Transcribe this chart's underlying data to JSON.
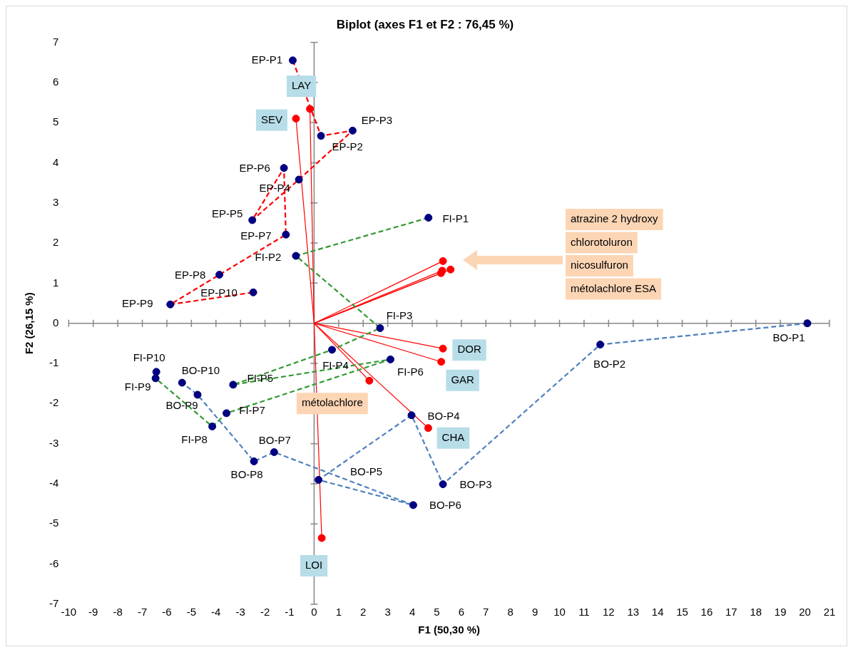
{
  "chart_data": {
    "type": "scatter",
    "title": "Biplot (axes F1 et F2 : 76,45 %)",
    "xlabel": "F1 (50,30 %)",
    "ylabel": "F2 (26,15 %)",
    "xlim": [
      -10,
      21
    ],
    "xticks": [
      -10,
      -9,
      -8,
      -7,
      -6,
      -5,
      -4,
      -3,
      -2,
      -1,
      0,
      1,
      2,
      3,
      4,
      5,
      6,
      7,
      8,
      9,
      10,
      11,
      12,
      13,
      14,
      15,
      16,
      17,
      18,
      19,
      20,
      21
    ],
    "ylim": [
      -7,
      7
    ],
    "yticks": [
      -7,
      -6,
      -5,
      -4,
      -3,
      -2,
      -1,
      0,
      1,
      2,
      3,
      4,
      5,
      6,
      7
    ],
    "legend": false,
    "series": [
      {
        "type": "scatter",
        "color": "#000080",
        "marker": "circle",
        "x": [
          -0.87,
          0.28,
          1.57,
          -0.62,
          -2.52,
          -1.23,
          -1.15,
          -3.86,
          -5.86,
          -2.48,
          4.66,
          -0.74,
          2.69,
          0.73,
          -3.3,
          3.11,
          -3.57,
          -4.15,
          -6.46,
          -6.43,
          20.1,
          11.66,
          5.25,
          3.97,
          0.18,
          4.04,
          -1.63,
          -2.45,
          -4.75,
          -5.38
        ],
        "values": [
          6.55,
          4.67,
          4.8,
          3.58,
          2.57,
          3.87,
          2.21,
          1.21,
          0.47,
          0.77,
          2.63,
          1.68,
          -0.12,
          -0.66,
          -1.53,
          -0.9,
          -2.24,
          -2.57,
          -1.37,
          -1.21,
          0,
          -0.53,
          -4.01,
          -2.29,
          -3.9,
          -4.53,
          -3.21,
          -3.44,
          -1.78,
          -1.48
        ]
      },
      {
        "type": "scatter",
        "color": "#ff0000",
        "marker": "circle",
        "x": [
          -0.17,
          -0.74,
          5.25,
          5.18,
          4.65,
          0.31
        ],
        "values": [
          5.34,
          5.1,
          -0.63,
          -0.96,
          -2.61,
          -5.35
        ]
      },
      {
        "type": "scatter",
        "color": "#ff0000",
        "marker": "circle",
        "x": [
          2.25,
          5.25,
          5.56,
          5.17,
          5.22
        ],
        "values": [
          -1.43,
          1.55,
          1.34,
          1.25,
          1.31
        ]
      },
      {
        "type": "line",
        "color": "#ff0000",
        "line_style": "dashed",
        "x": [
          -0.87,
          0.28,
          1.57,
          -0.62,
          -2.52,
          -1.23,
          -1.15,
          -3.86,
          -5.86,
          -2.48
        ],
        "values": [
          6.55,
          4.67,
          4.8,
          3.58,
          2.57,
          3.87,
          2.21,
          1.21,
          0.47,
          0.77
        ]
      },
      {
        "type": "line",
        "color": "#339933",
        "line_style": "dashed",
        "x": [
          4.66,
          -0.74,
          2.69,
          0.73,
          -3.3,
          3.11,
          -3.57,
          -4.15,
          -6.46,
          -6.43
        ],
        "values": [
          2.63,
          1.68,
          -0.12,
          -0.66,
          -1.53,
          -0.9,
          -2.24,
          -2.57,
          -1.37,
          -1.21
        ]
      },
      {
        "type": "line",
        "color": "#4f81bd",
        "line_style": "dashed",
        "x": [
          20.1,
          11.66,
          5.25,
          3.97,
          0.18,
          4.04,
          -1.63,
          -2.45,
          -4.75,
          -5.38
        ],
        "values": [
          0,
          -0.53,
          -4.01,
          -2.29,
          -3.9,
          -4.53,
          -3.21,
          -3.44,
          -1.78,
          -1.48
        ]
      },
      {
        "type": "line",
        "color": "#ff0000",
        "line_style": "solid",
        "x": [
          0,
          -0.17
        ],
        "values": [
          0,
          5.34
        ]
      },
      {
        "type": "line",
        "color": "#ff0000",
        "line_style": "solid",
        "x": [
          0,
          -0.74
        ],
        "values": [
          0,
          5.1
        ]
      },
      {
        "type": "line",
        "color": "#ff0000",
        "line_style": "solid",
        "x": [
          0,
          5.25
        ],
        "values": [
          0,
          -0.63
        ]
      },
      {
        "type": "line",
        "color": "#ff0000",
        "line_style": "solid",
        "x": [
          0,
          5.18
        ],
        "values": [
          0,
          -0.96
        ]
      },
      {
        "type": "line",
        "color": "#ff0000",
        "line_style": "solid",
        "x": [
          0,
          4.65
        ],
        "values": [
          0,
          -2.61
        ]
      },
      {
        "type": "line",
        "color": "#ff0000",
        "line_style": "solid",
        "x": [
          0,
          0.31
        ],
        "values": [
          0,
          -5.35
        ]
      },
      {
        "type": "line",
        "color": "#ff0000",
        "line_style": "solid",
        "x": [
          0,
          2.25
        ],
        "values": [
          0,
          -1.43
        ]
      },
      {
        "type": "line",
        "color": "#ff0000",
        "line_style": "solid",
        "x": [
          0,
          5.25
        ],
        "values": [
          0,
          1.55
        ]
      },
      {
        "type": "line",
        "color": "#ff0000",
        "line_style": "solid",
        "x": [
          0,
          5.56
        ],
        "values": [
          0,
          1.34
        ]
      },
      {
        "type": "line",
        "color": "#ff0000",
        "line_style": "solid",
        "x": [
          0,
          5.17
        ],
        "values": [
          0,
          1.25
        ]
      },
      {
        "type": "line",
        "color": "#ff0000",
        "line_style": "solid",
        "x": [
          0,
          5.22
        ],
        "values": [
          0,
          1.31
        ]
      }
    ],
    "annotations": [
      {
        "text": "EP-P1",
        "x": -0.87,
        "y": 6.55
      },
      {
        "text": "EP-P2",
        "x": 0.28,
        "y": 4.67
      },
      {
        "text": "EP-P3",
        "x": 1.57,
        "y": 4.8
      },
      {
        "text": "EP-P4",
        "x": -0.62,
        "y": 3.58
      },
      {
        "text": "EP-P5",
        "x": -2.52,
        "y": 2.57
      },
      {
        "text": "EP-P6",
        "x": -1.23,
        "y": 3.87
      },
      {
        "text": "EP-P7",
        "x": -1.15,
        "y": 2.21
      },
      {
        "text": "EP-P8",
        "x": -3.86,
        "y": 1.21
      },
      {
        "text": "EP-P9",
        "x": -5.86,
        "y": 0.47
      },
      {
        "text": "EP-P10",
        "x": -2.48,
        "y": 0.77
      },
      {
        "text": "FI-P1",
        "x": 4.66,
        "y": 2.63
      },
      {
        "text": "FI-P2",
        "x": -0.74,
        "y": 1.68
      },
      {
        "text": "FI-P3",
        "x": 2.69,
        "y": -0.12
      },
      {
        "text": "FI-P4",
        "x": 0.73,
        "y": -0.66
      },
      {
        "text": "FI-P5",
        "x": -3.3,
        "y": -1.53
      },
      {
        "text": "FI-P6",
        "x": 3.11,
        "y": -0.9
      },
      {
        "text": "FI-P7",
        "x": -3.57,
        "y": -2.24
      },
      {
        "text": "FI-P8",
        "x": -4.15,
        "y": -2.57
      },
      {
        "text": "FI-P9",
        "x": -6.46,
        "y": -1.37
      },
      {
        "text": "FI-P10",
        "x": -6.43,
        "y": -1.21
      },
      {
        "text": "BO-P1",
        "x": 20.1,
        "y": 0
      },
      {
        "text": "BO-P2",
        "x": 11.66,
        "y": -0.53
      },
      {
        "text": "BO-P3",
        "x": 5.25,
        "y": -4.01
      },
      {
        "text": "BO-P4",
        "x": 3.97,
        "y": -2.29
      },
      {
        "text": "BO-P5",
        "x": 0.18,
        "y": -3.9
      },
      {
        "text": "BO-P6",
        "x": 4.04,
        "y": -4.53
      },
      {
        "text": "BO-P7",
        "x": -1.63,
        "y": -3.21
      },
      {
        "text": "BO-P8",
        "x": -2.45,
        "y": -3.44
      },
      {
        "text": "BO-P9",
        "x": -4.75,
        "y": -1.78
      },
      {
        "text": "BO-P10",
        "x": -5.38,
        "y": -1.48
      },
      {
        "text": "LAY",
        "x": -0.17,
        "y": 5.34
      },
      {
        "text": "SEV",
        "x": -0.74,
        "y": 5.1
      },
      {
        "text": "DOR",
        "x": 5.25,
        "y": -0.63
      },
      {
        "text": "GAR",
        "x": 5.18,
        "y": -0.96
      },
      {
        "text": "CHA",
        "x": 4.65,
        "y": -2.61
      },
      {
        "text": "LOI",
        "x": 0.31,
        "y": -5.35
      },
      {
        "text": "métolachlore",
        "x": 2.25,
        "y": -1.43
      },
      "atrazine 2 hydroxy",
      "chlorotoluron",
      "nicosulfuron",
      "métolachlore ESA"
    ]
  }
}
